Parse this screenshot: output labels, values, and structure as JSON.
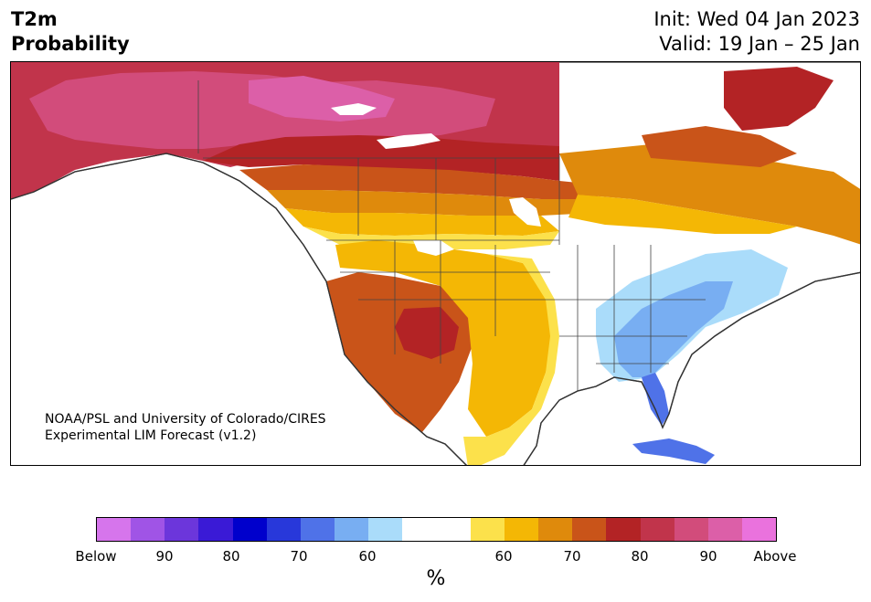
{
  "header": {
    "title_line1": "T2m",
    "title_line2": "Probability",
    "init": "Init: Wed 04 Jan 2023",
    "valid": "Valid: 19 Jan – 25 Jan"
  },
  "map": {
    "credit_line1": "NOAA/PSL and University of Colorado/CIRES",
    "credit_line2": "Experimental LIM Forecast (v1.2)"
  },
  "colorbar": {
    "colors": [
      "#d675ec",
      "#a054e6",
      "#6c36db",
      "#3a1ad6",
      "#0000cc",
      "#2838da",
      "#4f72e8",
      "#78aef2",
      "#aadcfa",
      "#ffffff",
      "#ffffff",
      "#fce14b",
      "#f4b705",
      "#df8a0c",
      "#c95419",
      "#b32325",
      "#c1344b",
      "#d24c7b",
      "#dc5fa8",
      "#ea72dd"
    ],
    "labels": {
      "below": "Below",
      "b90": "90",
      "b80": "80",
      "b70": "70",
      "b60": "60",
      "a60": "60",
      "a70": "70",
      "a80": "80",
      "a90": "90",
      "above": "Above"
    },
    "units": "%"
  }
}
